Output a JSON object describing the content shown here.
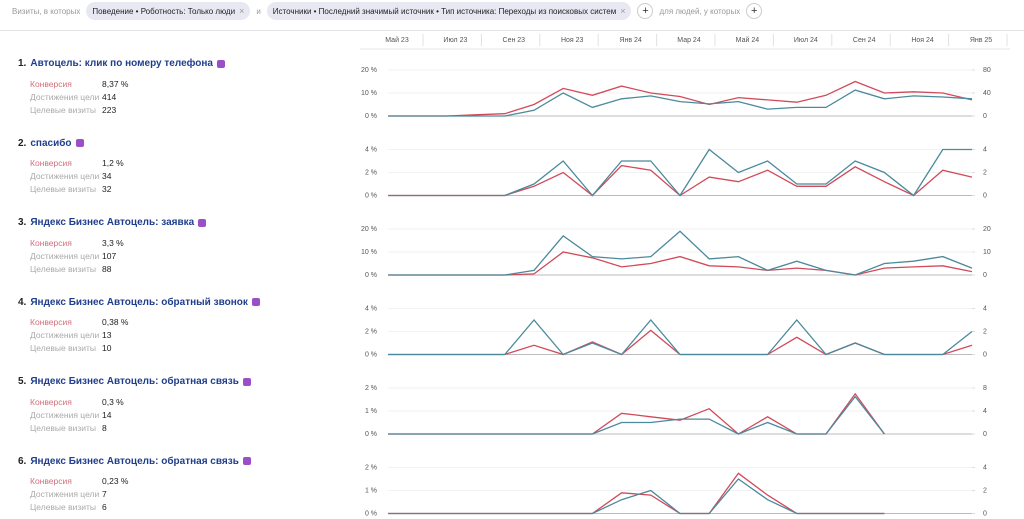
{
  "filters": {
    "prefix": "Визиты, в которых",
    "chips": [
      "Поведение • Роботность: Только люди",
      "Источники • Последний значимый источник • Тип источника: Переходы из поисковых систем"
    ],
    "joiner": "и",
    "suffix": "для людей, у которых"
  },
  "timeline": [
    "Май 23",
    "Июл 23",
    "Сен 23",
    "Ноя 23",
    "Янв 24",
    "Мар 24",
    "Май 24",
    "Июл 24",
    "Сен 24",
    "Ноя 24",
    "Янв 25"
  ],
  "goals": [
    {
      "number": "1.",
      "title": "Автоцель: клик по номеру телефона",
      "metrics": [
        {
          "label": "Конверсия",
          "value": "8,37 %"
        },
        {
          "label": "Достижения цели",
          "value": "414"
        },
        {
          "label": "Целевые визиты",
          "value": "223"
        }
      ],
      "chart": {
        "type": "line",
        "ylim": [
          0,
          20
        ],
        "yticks": [
          {
            "value": 0,
            "label": "0 %"
          },
          {
            "value": 10,
            "label": "10 %"
          },
          {
            "value": 20,
            "label": "20 %"
          }
        ],
        "y2lim": [
          0,
          80
        ],
        "y2ticks": [
          0,
          40,
          80
        ],
        "series": [
          {
            "color": "#d24a5a",
            "values": [
              0,
              0,
              0,
              0.5,
              1,
              5,
              12,
              9,
              13,
              10,
              8.5,
              5,
              8,
              7,
              6,
              9,
              15,
              10,
              10.5,
              10,
              7
            ]
          },
          {
            "color": "#4a8a9c",
            "axis": "y2",
            "values": [
              0,
              0,
              0,
              0,
              0,
              10,
              40,
              15,
              30,
              35,
              25,
              21,
              25,
              12,
              15,
              15,
              45,
              30,
              35,
              33,
              30
            ]
          }
        ]
      }
    },
    {
      "number": "2.",
      "title": "спасибо",
      "metrics": [
        {
          "label": "Конверсия",
          "value": "1,2 %"
        },
        {
          "label": "Достижения цели",
          "value": "34"
        },
        {
          "label": "Целевые визиты",
          "value": "32"
        }
      ],
      "chart": {
        "type": "line",
        "ylim": [
          0,
          4
        ],
        "yticks": [
          {
            "value": 0,
            "label": "0 %"
          },
          {
            "value": 2,
            "label": "2 %"
          },
          {
            "value": 4,
            "label": "4 %"
          }
        ],
        "y2lim": [
          0,
          4
        ],
        "y2ticks": [
          0,
          2,
          4
        ],
        "series": [
          {
            "color": "#d24a5a",
            "values": [
              0,
              0,
              0,
              0,
              0,
              0.8,
              2,
              0,
              2.6,
              2.2,
              0,
              1.6,
              1.2,
              2.2,
              0.8,
              0.8,
              2.5,
              1.2,
              0,
              2.2,
              1.6
            ]
          },
          {
            "color": "#4a8a9c",
            "axis": "y2",
            "values": [
              0,
              0,
              0,
              0,
              0,
              1,
              3,
              0,
              3,
              3,
              0,
              4,
              2,
              3,
              1,
              1,
              3,
              2,
              0,
              4,
              4
            ]
          }
        ]
      }
    },
    {
      "number": "3.",
      "title": "Яндекс Бизнес Автоцель: заявка",
      "metrics": [
        {
          "label": "Конверсия",
          "value": "3,3 %"
        },
        {
          "label": "Достижения цели",
          "value": "107"
        },
        {
          "label": "Целевые визиты",
          "value": "88"
        }
      ],
      "chart": {
        "type": "line",
        "ylim": [
          0,
          20
        ],
        "yticks": [
          {
            "value": 0,
            "label": "0 %"
          },
          {
            "value": 10,
            "label": "10 %"
          },
          {
            "value": 20,
            "label": "20 %"
          }
        ],
        "y2lim": [
          0,
          20
        ],
        "y2ticks": [
          0,
          10,
          20
        ],
        "series": [
          {
            "color": "#d24a5a",
            "values": [
              0,
              0,
              0,
              0,
              0,
              0.5,
              10,
              7.5,
              3.5,
              5,
              8,
              4,
              3.5,
              2,
              3,
              2,
              0,
              3,
              3.5,
              4,
              1.5
            ]
          },
          {
            "color": "#4a8a9c",
            "axis": "y2",
            "values": [
              0,
              0,
              0,
              0,
              0,
              2,
              17,
              8,
              7,
              8,
              19,
              7,
              8,
              2,
              6,
              2,
              0,
              5,
              6,
              8,
              3
            ]
          }
        ]
      }
    },
    {
      "number": "4.",
      "title": "Яндекс Бизнес Автоцель: обратный звонок",
      "metrics": [
        {
          "label": "Конверсия",
          "value": "0,38 %"
        },
        {
          "label": "Достижения цели",
          "value": "13"
        },
        {
          "label": "Целевые визиты",
          "value": "10"
        }
      ],
      "chart": {
        "type": "line",
        "ylim": [
          0,
          4
        ],
        "yticks": [
          {
            "value": 0,
            "label": "0 %"
          },
          {
            "value": 2,
            "label": "2 %"
          },
          {
            "value": 4,
            "label": "4 %"
          }
        ],
        "y2lim": [
          0,
          4
        ],
        "y2ticks": [
          0,
          2,
          4
        ],
        "series": [
          {
            "color": "#d24a5a",
            "values": [
              0,
              0,
              0,
              0,
              0,
              0.8,
              0,
              1.1,
              0,
              2.1,
              0,
              0,
              0,
              0,
              1.5,
              0,
              1,
              0,
              0,
              0,
              0.8
            ]
          },
          {
            "color": "#4a8a9c",
            "axis": "y2",
            "values": [
              0,
              0,
              0,
              0,
              0,
              3,
              0,
              1,
              0,
              3,
              0,
              0,
              0,
              0,
              3,
              0,
              1,
              0,
              0,
              0,
              2
            ]
          }
        ]
      }
    },
    {
      "number": "5.",
      "title": "Яндекс Бизнес Автоцель: обратная связь",
      "metrics": [
        {
          "label": "Конверсия",
          "value": "0,3 %"
        },
        {
          "label": "Достижения цели",
          "value": "14"
        },
        {
          "label": "Целевые визиты",
          "value": "8"
        }
      ],
      "chart": {
        "type": "line",
        "ylim": [
          0,
          2
        ],
        "yticks": [
          {
            "value": 0,
            "label": "0 %"
          },
          {
            "value": 1,
            "label": "1 %"
          },
          {
            "value": 2,
            "label": "2 %"
          }
        ],
        "y2lim": [
          0,
          8
        ],
        "y2ticks": [
          0,
          4,
          8
        ],
        "series": [
          {
            "color": "#d24a5a",
            "values": [
              0,
              0,
              0,
              0,
              0,
              0,
              0,
              0,
              0.9,
              0.75,
              0.6,
              1.1,
              0,
              0.75,
              0,
              0,
              1.75,
              0,
              null,
              null,
              null
            ]
          },
          {
            "color": "#4a8a9c",
            "axis": "y2",
            "values": [
              0,
              0,
              0,
              0,
              0,
              0,
              0,
              0,
              2,
              2,
              2.6,
              2.6,
              0,
              2,
              0,
              0,
              6.5,
              0,
              null,
              null,
              null
            ]
          }
        ]
      }
    },
    {
      "number": "6.",
      "title": "Яндекс Бизнес Автоцель: обратная связь",
      "metrics": [
        {
          "label": "Конверсия",
          "value": "0,23 %"
        },
        {
          "label": "Достижения цели",
          "value": "7"
        },
        {
          "label": "Целевые визиты",
          "value": "6"
        }
      ],
      "chart": {
        "type": "line",
        "ylim": [
          0,
          2
        ],
        "yticks": [
          {
            "value": 0,
            "label": "0 %"
          },
          {
            "value": 1,
            "label": "1 %"
          },
          {
            "value": 2,
            "label": "2 %"
          }
        ],
        "y2lim": [
          0,
          4
        ],
        "y2ticks": [
          0,
          2,
          4
        ],
        "series": [
          {
            "color": "#d24a5a",
            "values": [
              0,
              0,
              0,
              0,
              0,
              0,
              0,
              0,
              0.9,
              0.8,
              0,
              0,
              1.75,
              0.8,
              0,
              0,
              0,
              0,
              null,
              null,
              null
            ]
          },
          {
            "color": "#4a8a9c",
            "axis": "y2",
            "values": [
              0,
              0,
              0,
              0,
              0,
              0,
              0,
              0,
              1.2,
              2,
              0,
              0,
              3,
              1.2,
              0,
              0,
              0,
              0,
              null,
              null,
              null
            ]
          }
        ]
      }
    }
  ]
}
